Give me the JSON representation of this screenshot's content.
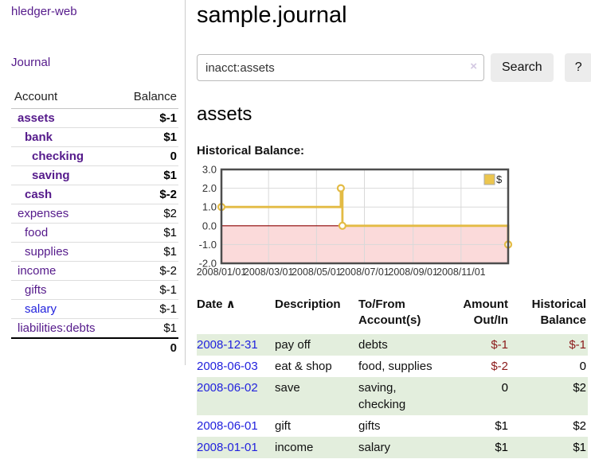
{
  "app": {
    "brand": "hledger-web"
  },
  "sidebar": {
    "journal_label": "Journal",
    "table": {
      "headers": [
        "Account",
        "Balance"
      ],
      "rows": [
        {
          "account": "assets",
          "depth": 1,
          "bold": true,
          "link": "purple",
          "balance": "$-1",
          "neg": "strong"
        },
        {
          "account": "bank",
          "depth": 2,
          "bold": true,
          "link": "purple",
          "balance": "$1",
          "neg": "none"
        },
        {
          "account": "checking",
          "depth": 3,
          "bold": true,
          "link": "purple",
          "balance": "0",
          "neg": "none"
        },
        {
          "account": "saving",
          "depth": 3,
          "bold": true,
          "link": "purple",
          "balance": "$1",
          "neg": "none"
        },
        {
          "account": "cash",
          "depth": 2,
          "bold": true,
          "link": "purple",
          "balance": "$-2",
          "neg": "strong"
        },
        {
          "account": "expenses",
          "depth": 1,
          "bold": false,
          "link": "purple",
          "balance": "$2",
          "neg": "none"
        },
        {
          "account": "food",
          "depth": 2,
          "bold": false,
          "link": "purple",
          "balance": "$1",
          "neg": "none"
        },
        {
          "account": "supplies",
          "depth": 2,
          "bold": false,
          "link": "purple",
          "balance": "$1",
          "neg": "none"
        },
        {
          "account": "income",
          "depth": 1,
          "bold": false,
          "link": "purple",
          "balance": "$-2",
          "neg": "muted"
        },
        {
          "account": "gifts",
          "depth": 2,
          "bold": false,
          "link": "purple",
          "balance": "$-1",
          "neg": "muted"
        },
        {
          "account": "salary",
          "depth": 2,
          "bold": false,
          "link": "blue",
          "balance": "$-1",
          "neg": "muted"
        },
        {
          "account": "liabilities:debts",
          "depth": 1,
          "bold": false,
          "link": "purple",
          "balance": "$1",
          "neg": "none"
        }
      ],
      "total": "0"
    }
  },
  "header": {
    "title": "sample.journal"
  },
  "search": {
    "value": "inacct:assets",
    "clear_icon": "×",
    "button": "Search",
    "help_button": "?"
  },
  "account_page": {
    "heading": "assets",
    "chart_label": "Historical Balance:"
  },
  "chart_data": {
    "type": "line",
    "step": true,
    "title": "Historical Balance:",
    "legend": [
      {
        "label": "$",
        "color": "#ecc64e"
      }
    ],
    "series": [
      {
        "name": "$",
        "points": [
          [
            "2008-01-01",
            1
          ],
          [
            "2008-06-01",
            2
          ],
          [
            "2008-06-03",
            0
          ],
          [
            "2008-12-31",
            -1
          ]
        ]
      }
    ],
    "x_domain": [
      "2008-01-01",
      "2008-12-31"
    ],
    "ylim": [
      -2,
      3
    ],
    "yticks": [
      3.0,
      2.0,
      1.0,
      0.0,
      -1.0,
      -2.0
    ],
    "xticks": [
      "2008/01/01",
      "2008/03/01",
      "2008/05/01",
      "2008/07/01",
      "2008/09/01",
      "2008/11/01"
    ],
    "grid": true,
    "legend_position": "top-right",
    "line_color": "#e3bb44",
    "negative_region_color": "#fbdada",
    "zero_line_color": "#8b0000",
    "grid_color": "#d9d9d9",
    "border_color": "#4d4d4d",
    "tick_label_color": "#333333"
  },
  "register": {
    "sort_icon": "∧",
    "columns": [
      {
        "label": "Date",
        "label2": "",
        "align": "left",
        "sortable": true
      },
      {
        "label": "Description",
        "label2": "",
        "align": "left"
      },
      {
        "label": "To/From",
        "label2": "Account(s)",
        "align": "left"
      },
      {
        "label": "Amount",
        "label2": "Out/In",
        "align": "right"
      },
      {
        "label": "Historical",
        "label2": "Balance",
        "align": "right"
      }
    ],
    "rows": [
      {
        "date": "2008-12-31",
        "description": "pay off",
        "accounts": "debts",
        "amount": "$-1",
        "amount_negative": true,
        "balance": "$-1",
        "balance_negative": true
      },
      {
        "date": "2008-06-03",
        "description": "eat & shop",
        "accounts": "food, supplies",
        "amount": "$-2",
        "amount_negative": true,
        "balance": "0",
        "balance_negative": false
      },
      {
        "date": "2008-06-02",
        "description": "save",
        "accounts": "saving, checking",
        "amount": "0",
        "amount_negative": false,
        "balance": "$2",
        "balance_negative": false
      },
      {
        "date": "2008-06-01",
        "description": "gift",
        "accounts": "gifts",
        "amount": "$1",
        "amount_negative": false,
        "balance": "$2",
        "balance_negative": false
      },
      {
        "date": "2008-01-01",
        "description": "income",
        "accounts": "salary",
        "amount": "$1",
        "amount_negative": false,
        "balance": "$1",
        "balance_negative": false
      }
    ]
  },
  "colors": {
    "accent_purple": "#551a8b",
    "link_blue": "#2222dd",
    "negative_strong": "#8b1a1a",
    "negative_muted": "#c08585",
    "row_green": "#e3eedd"
  }
}
